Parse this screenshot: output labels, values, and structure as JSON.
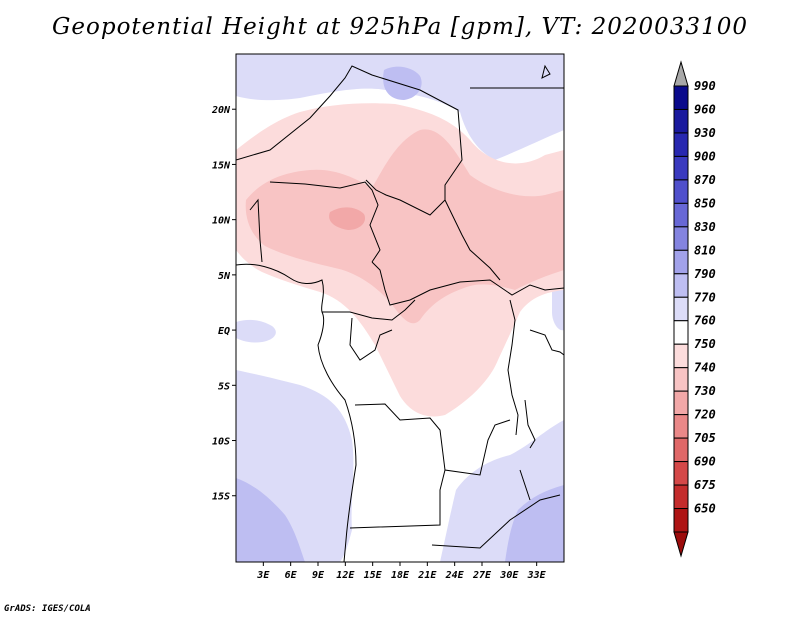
{
  "title": "Geopotential Height at 925hPa [gpm], VT: 2020033100",
  "credit": "GrADS: IGES/COLA",
  "map": {
    "lon_range": [
      0,
      36
    ],
    "lat_range": [
      -21,
      25
    ],
    "lat_ticks": [
      {
        "value": 20,
        "label": "20N"
      },
      {
        "value": 15,
        "label": "15N"
      },
      {
        "value": 10,
        "label": "10N"
      },
      {
        "value": 5,
        "label": "5N"
      },
      {
        "value": 0,
        "label": "EQ"
      },
      {
        "value": -5,
        "label": "5S"
      },
      {
        "value": -10,
        "label": "10S"
      },
      {
        "value": -15,
        "label": "15S"
      }
    ],
    "lon_ticks": [
      {
        "value": 3,
        "label": "3E"
      },
      {
        "value": 6,
        "label": "6E"
      },
      {
        "value": 9,
        "label": "9E"
      },
      {
        "value": 12,
        "label": "12E"
      },
      {
        "value": 15,
        "label": "15E"
      },
      {
        "value": 18,
        "label": "18E"
      },
      {
        "value": 21,
        "label": "21E"
      },
      {
        "value": 24,
        "label": "24E"
      },
      {
        "value": 27,
        "label": "27E"
      },
      {
        "value": 30,
        "label": "30E"
      },
      {
        "value": 33,
        "label": "33E"
      }
    ]
  },
  "colorbar": {
    "levels": [
      {
        "label": "990",
        "color": "#0a0a8c"
      },
      {
        "label": "960",
        "color": "#1a1a9e"
      },
      {
        "label": "930",
        "color": "#2828b0"
      },
      {
        "label": "900",
        "color": "#3a3abf"
      },
      {
        "label": "870",
        "color": "#5050cc"
      },
      {
        "label": "850",
        "color": "#6868d6"
      },
      {
        "label": "830",
        "color": "#8484e0"
      },
      {
        "label": "810",
        "color": "#a2a2ea"
      },
      {
        "label": "790",
        "color": "#bebef2"
      },
      {
        "label": "770",
        "color": "#dcdcf8"
      },
      {
        "label": "760",
        "color": "#ffffff"
      },
      {
        "label": "750",
        "color": "#fcdcdc"
      },
      {
        "label": "740",
        "color": "#f8c4c4"
      },
      {
        "label": "730",
        "color": "#f2a8a8"
      },
      {
        "label": "720",
        "color": "#ea8888"
      },
      {
        "label": "705",
        "color": "#e06868"
      },
      {
        "label": "690",
        "color": "#d44848"
      },
      {
        "label": "675",
        "color": "#c42c2c"
      },
      {
        "label": "650",
        "color": "#ae1414"
      }
    ],
    "top_arrow_color": "#a8a8a8",
    "bottom_arrow_color": "#9c0c0c"
  }
}
